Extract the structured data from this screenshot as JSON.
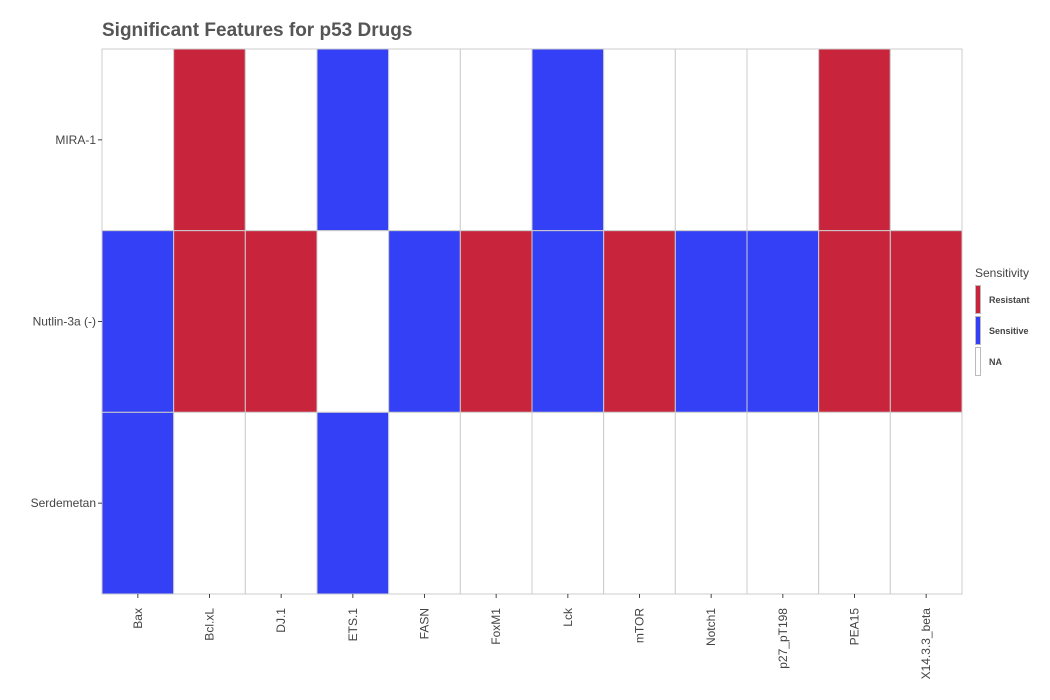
{
  "chart_data": {
    "type": "heatmap",
    "title": "Significant Features for p53 Drugs",
    "x_categories": [
      "Bax",
      "Bcl.xL",
      "DJ.1",
      "ETS.1",
      "FASN",
      "FoxM1",
      "Lck",
      "mTOR",
      "Notch1",
      "p27_pT198",
      "PEA15",
      "X14.3.3_beta"
    ],
    "y_categories": [
      "MIRA-1",
      "Nutlin-3a (-)",
      "Serdemetan"
    ],
    "values": [
      [
        "NA",
        "Resistant",
        "NA",
        "Sensitive",
        "NA",
        "NA",
        "Sensitive",
        "NA",
        "NA",
        "NA",
        "Resistant",
        "NA"
      ],
      [
        "Sensitive",
        "Resistant",
        "Resistant",
        "NA",
        "Sensitive",
        "Resistant",
        "Sensitive",
        "Resistant",
        "Sensitive",
        "Sensitive",
        "Resistant",
        "Resistant"
      ],
      [
        "Sensitive",
        "NA",
        "NA",
        "Sensitive",
        "NA",
        "NA",
        "NA",
        "NA",
        "NA",
        "NA",
        "NA",
        "NA"
      ]
    ],
    "legend": {
      "title": "Sensitivity",
      "placement": "right",
      "entries": [
        {
          "label": "Resistant",
          "color": "#c8253d"
        },
        {
          "label": "Sensitive",
          "color": "#3340f5"
        },
        {
          "label": "NA",
          "color": "#ffffff"
        }
      ]
    },
    "grid": true
  }
}
